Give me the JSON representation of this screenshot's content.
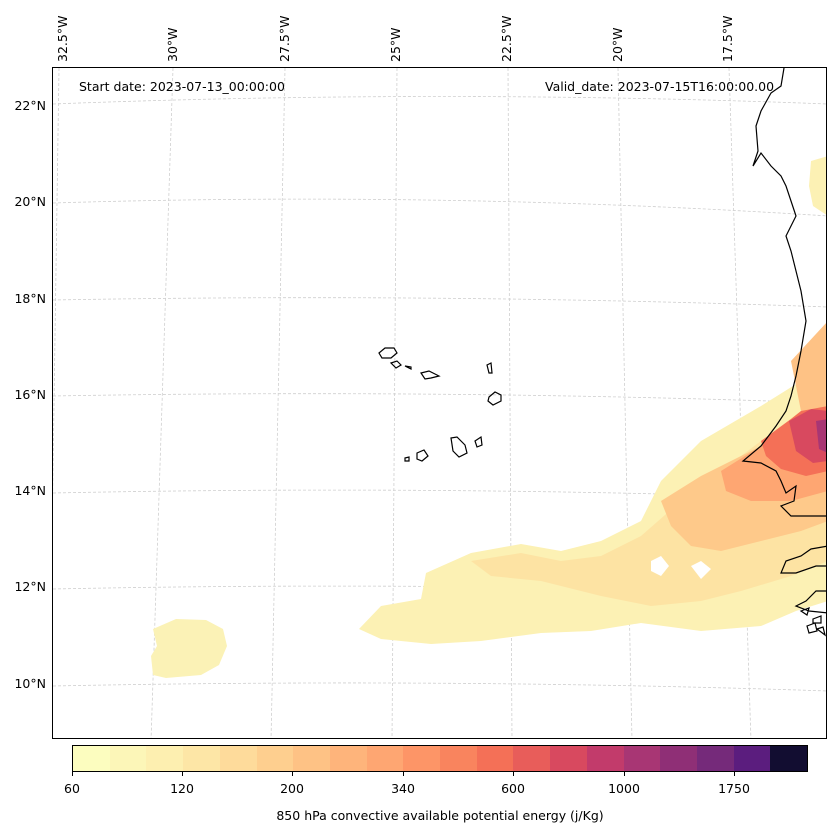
{
  "header": {
    "start_date": "Start date: 2023-07-13_00:00:00",
    "valid_date": "Valid_date: 2023-07-15T16:00:00.00"
  },
  "axes": {
    "lon_labels": [
      "32.5°W",
      "30°W",
      "27.5°W",
      "25°W",
      "22.5°W",
      "20°W",
      "17.5°W"
    ],
    "lat_labels": [
      "22°N",
      "20°N",
      "18°N",
      "16°N",
      "14°N",
      "12°N",
      "10°N"
    ],
    "gridlines": true
  },
  "colorbar": {
    "title": "850 hPa convective available potential energy (j/Kg)",
    "tick_labels": [
      "60",
      "120",
      "200",
      "340",
      "600",
      "1000",
      "1750"
    ],
    "colors": [
      "#fcfdbf",
      "#fcf6b8",
      "#fdefb0",
      "#fde6a6",
      "#fedb9b",
      "#fecf8f",
      "#fec285",
      "#feb47b",
      "#fea672",
      "#fd9567",
      "#f9845e",
      "#f47057",
      "#e85d5a",
      "#d8495f",
      "#c23b6b",
      "#a83674",
      "#8f2f76",
      "#752a7a",
      "#5b1d7e",
      "#120d31"
    ]
  }
}
